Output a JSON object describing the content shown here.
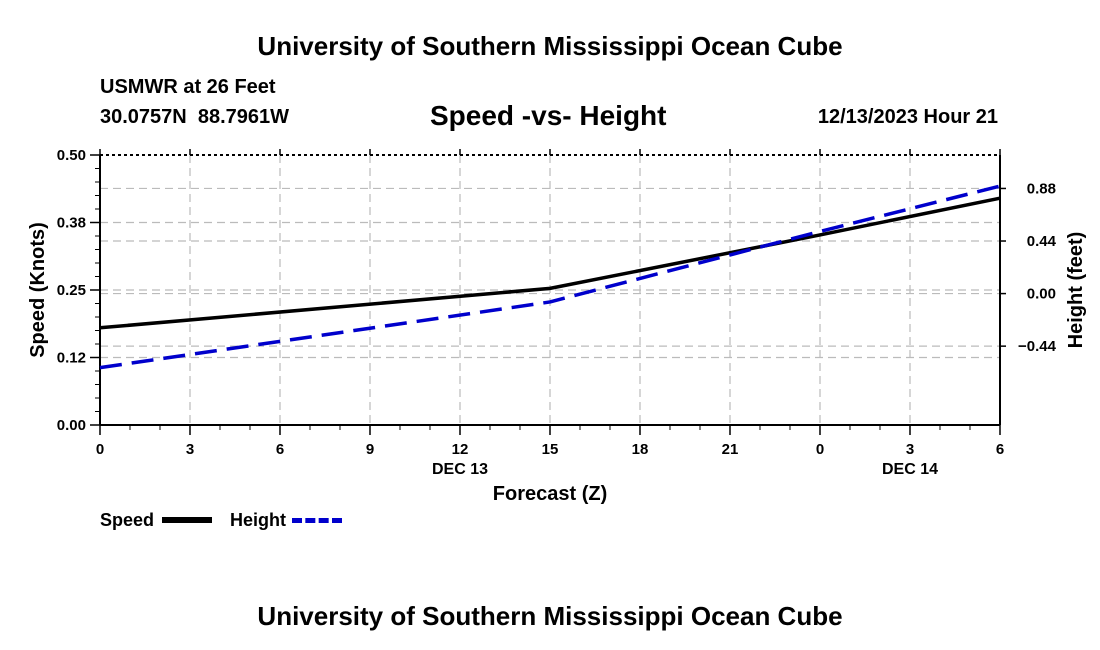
{
  "titles": {
    "top": "University of Southern Mississippi Ocean Cube",
    "bottom": "University of Southern Mississippi Ocean Cube"
  },
  "header": {
    "station": "USMWR at 26 Feet",
    "lat": "30.0757N",
    "lon": "88.7961W",
    "subtitle": "Speed -vs- Height",
    "datetime": "12/13/2023 Hour 21"
  },
  "chart_data": {
    "type": "line",
    "title": "Speed -vs- Height",
    "xlabel": "Forecast (Z)",
    "ylabel": "Speed (Knots)",
    "y2label": "Height (feet)",
    "x_hours": [
      0,
      15,
      24,
      30
    ],
    "x_range": [
      0,
      30
    ],
    "x_tick_hours": [
      0,
      3,
      6,
      9,
      12,
      15,
      18,
      21,
      24,
      27,
      30
    ],
    "x_tick_labels": [
      "0",
      "3",
      "6",
      "9",
      "12",
      "15",
      "18",
      "21",
      "0",
      "3",
      "6"
    ],
    "date_labels": [
      {
        "hour": 12,
        "label": "DEC 13"
      },
      {
        "hour": 27,
        "label": "DEC 14"
      }
    ],
    "ylim": [
      0,
      0.5
    ],
    "y_ticks": [
      0.0,
      0.125,
      0.25,
      0.375,
      0.5
    ],
    "y_tick_labels": [
      "0.00",
      "0.12",
      "0.25",
      "0.38",
      "0.50"
    ],
    "y2lim": [
      -1.1,
      1.16
    ],
    "y2_ticks": [
      -0.44,
      0.0,
      0.44,
      0.88
    ],
    "y2_tick_labels": [
      "−0.44",
      "0.00",
      "0.44",
      "0.88"
    ],
    "series": [
      {
        "name": "Speed",
        "axis": "left",
        "color": "#000000",
        "style": "solid",
        "x": [
          0,
          15,
          24,
          30
        ],
        "values": [
          0.18,
          0.253,
          0.352,
          0.42
        ]
      },
      {
        "name": "Height",
        "axis": "right",
        "color": "#0000cc",
        "style": "dashed",
        "x": [
          0,
          15,
          24,
          30
        ],
        "values": [
          -0.62,
          -0.07,
          0.52,
          0.9
        ]
      }
    ],
    "grid": true,
    "legend": "bottom-left"
  },
  "legend": {
    "speed_label": "Speed",
    "height_label": "Height"
  }
}
